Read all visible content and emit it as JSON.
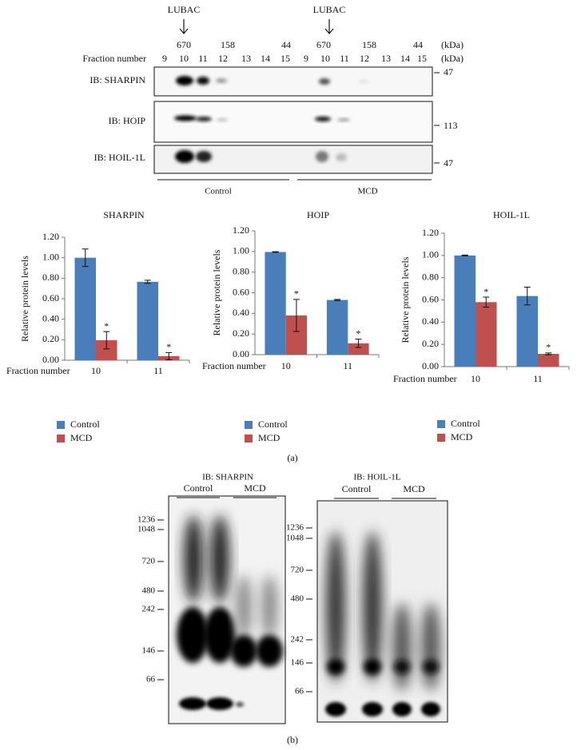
{
  "panel_a": {
    "lubac": [
      "LUBAC",
      "LUBAC"
    ],
    "mw_left": [
      "670",
      "158",
      "44"
    ],
    "mw_right": [
      "670",
      "158",
      "44",
      "(kDa)"
    ],
    "fraction_label": "Fraction number",
    "fractions_left": [
      "9",
      "10",
      "11",
      "12",
      "13",
      "14",
      "15"
    ],
    "fractions_right": [
      "9",
      "10",
      "11",
      "12",
      "13",
      "14",
      "15"
    ],
    "fraction_unit": "(kDa)",
    "blots": [
      {
        "label": "IB: SHARPIN",
        "marker": "47"
      },
      {
        "label": "IB: HOIP",
        "marker": "113"
      },
      {
        "label": "IB: HOIL-1L",
        "marker": "47"
      }
    ],
    "groups": [
      "Control",
      "MCD"
    ],
    "caption": "(a)"
  },
  "chart_data": [
    {
      "type": "bar",
      "title": "SHARPIN",
      "y_label": "Relative protein levels",
      "x_label": "Fraction number",
      "categories": [
        "10",
        "11"
      ],
      "series": [
        {
          "name": "Control",
          "color": "#4a7ebb",
          "values": [
            1.0,
            0.765
          ],
          "errors": [
            0.085,
            0.015
          ]
        },
        {
          "name": "MCD",
          "color": "#c0504d",
          "values": [
            0.195,
            0.04
          ],
          "errors": [
            0.085,
            0.035
          ],
          "markers": [
            "*",
            "*"
          ]
        }
      ],
      "ylim": [
        0,
        1.2
      ],
      "yticks": [
        {
          "value": 0,
          "label": "0.00"
        },
        {
          "value": 0.2,
          "label": "0.20"
        },
        {
          "value": 0.4,
          "label": "0.40"
        },
        {
          "value": 0.6,
          "label": "0.60"
        },
        {
          "value": 0.8,
          "label": "0.80"
        },
        {
          "value": 1,
          "label": "1.00"
        },
        {
          "value": 1.2,
          "label": "1.20"
        }
      ]
    },
    {
      "type": "bar",
      "title": "HOIP",
      "y_label": "Relative protein levels",
      "x_label": "Fraction number",
      "categories": [
        "10",
        "11"
      ],
      "series": [
        {
          "name": "Control",
          "color": "#4a7ebb",
          "values": [
            0.995,
            0.53
          ],
          "errors": [
            0.003,
            0.005
          ]
        },
        {
          "name": "MCD",
          "color": "#c0504d",
          "values": [
            0.38,
            0.11
          ],
          "errors": [
            0.155,
            0.04
          ],
          "markers": [
            "*",
            "*"
          ]
        }
      ],
      "ylim": [
        0,
        1.2
      ],
      "yticks": [
        {
          "value": 0,
          "label": "0.00"
        },
        {
          "value": 0.2,
          "label": "0.20"
        },
        {
          "value": 0.4,
          "label": "0.40"
        },
        {
          "value": 0.6,
          "label": "0.60"
        },
        {
          "value": 0.8,
          "label": "0.80"
        },
        {
          "value": 1,
          "label": "1.00"
        },
        {
          "value": 1.2,
          "label": "1.20"
        }
      ]
    },
    {
      "type": "bar",
      "title": "HOIL-1L",
      "y_label": "Relative protein levels",
      "x_label": "Fraction number",
      "categories": [
        "10",
        "11"
      ],
      "series": [
        {
          "name": "Control",
          "color": "#4a7ebb",
          "values": [
            1.0,
            0.635
          ],
          "errors": [
            0.003,
            0.08
          ]
        },
        {
          "name": "MCD",
          "color": "#c0504d",
          "values": [
            0.58,
            0.115
          ],
          "errors": [
            0.045,
            0.008
          ],
          "markers": [
            "*",
            "*"
          ]
        }
      ],
      "ylim": [
        0,
        1.2
      ],
      "yticks": [
        {
          "value": 0,
          "label": "0.00"
        },
        {
          "value": 0.2,
          "label": "0.20"
        },
        {
          "value": 0.4,
          "label": "0.40"
        },
        {
          "value": 0.6,
          "label": "0.60"
        },
        {
          "value": 0.8,
          "label": "0.80"
        },
        {
          "value": 1,
          "label": "1.00"
        },
        {
          "value": 1.2,
          "label": "1.20"
        }
      ]
    }
  ],
  "panel_b": {
    "blots": [
      {
        "label": "IB: SHARPIN",
        "groups": [
          "Control",
          "MCD"
        ],
        "markers": [
          "1236",
          "1048",
          "720",
          "480",
          "242",
          "146",
          "66"
        ]
      },
      {
        "label": "IB: HOIL-1L",
        "groups": [
          "Control",
          "MCD"
        ],
        "markers": [
          "1236",
          "1048",
          "720",
          "480",
          "242",
          "146",
          "66"
        ]
      }
    ],
    "caption": "(b)"
  }
}
